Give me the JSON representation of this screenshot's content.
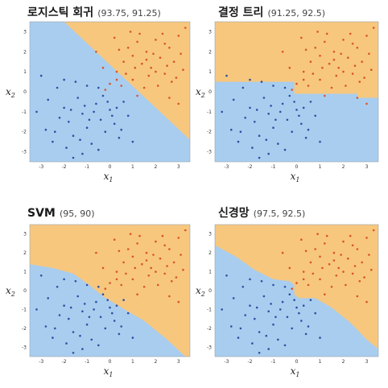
{
  "colors": {
    "orange_region": "#f7c77e",
    "blue_region": "#a8cdef",
    "orange_point": "#d9542a",
    "blue_point": "#2e4fa3"
  },
  "chart_data": [
    {
      "type": "scatter",
      "title": "로지스틱 회귀",
      "score": "(93.75, 91.25)",
      "xlabel": "x",
      "xlabel_sub": "1",
      "ylabel": "x",
      "ylabel_sub": "2",
      "x_ticks": [
        "-3",
        "-2",
        "-1",
        "0",
        "1",
        "2",
        "3"
      ],
      "y_ticks": [
        "3",
        "2",
        "1",
        "0",
        "-1",
        "-2",
        "-3"
      ],
      "xlim": [
        -3.5,
        3.5
      ],
      "ylim": [
        -3.5,
        3.5
      ],
      "boundary": "linear"
    },
    {
      "type": "scatter",
      "title": "결정 트리",
      "score": "(91.25, 92.5)",
      "xlabel": "x",
      "xlabel_sub": "1",
      "ylabel": "x",
      "ylabel_sub": "2",
      "x_ticks": [
        "-3",
        "-2",
        "-1",
        "0",
        "1",
        "2",
        "3"
      ],
      "y_ticks": [
        "3",
        "2",
        "1",
        "0",
        "-1",
        "-2",
        "-3"
      ],
      "xlim": [
        -3.5,
        3.5
      ],
      "ylim": [
        -3.5,
        3.5
      ],
      "boundary": "tree"
    },
    {
      "type": "scatter",
      "title": "SVM",
      "score": "(95, 90)",
      "xlabel": "x",
      "xlabel_sub": "1",
      "ylabel": "x",
      "ylabel_sub": "2",
      "x_ticks": [
        "-3",
        "-2",
        "-1",
        "0",
        "1",
        "2",
        "3"
      ],
      "y_ticks": [
        "3",
        "2",
        "1",
        "0",
        "-1",
        "-2",
        "-3"
      ],
      "xlim": [
        -3.5,
        3.5
      ],
      "ylim": [
        -3.5,
        3.5
      ],
      "boundary": "svm"
    },
    {
      "type": "scatter",
      "title": "신경망",
      "score": "(97.5, 92.5)",
      "xlabel": "x",
      "xlabel_sub": "1",
      "ylabel": "x",
      "ylabel_sub": "2",
      "x_ticks": [
        "-3",
        "-2",
        "-1",
        "0",
        "1",
        "2",
        "3"
      ],
      "y_ticks": [
        "3",
        "2",
        "1",
        "0",
        "-1",
        "-2",
        "-3"
      ],
      "xlim": [
        -3.5,
        3.5
      ],
      "ylim": [
        -3.5,
        3.5
      ],
      "boundary": "nn"
    }
  ],
  "points": {
    "orange": [
      [
        -0.3,
        1.2
      ],
      [
        0.3,
        1.0
      ],
      [
        0.5,
        0.3
      ],
      [
        0.8,
        2.2
      ],
      [
        1.0,
        1.8
      ],
      [
        1.2,
        2.5
      ],
      [
        1.4,
        1.4
      ],
      [
        1.6,
        2.0
      ],
      [
        1.8,
        1.2
      ],
      [
        2.0,
        2.6
      ],
      [
        2.2,
        1.7
      ],
      [
        2.4,
        0.9
      ],
      [
        2.6,
        2.2
      ],
      [
        2.8,
        1.5
      ],
      [
        3.0,
        2.8
      ],
      [
        0.2,
        2.7
      ],
      [
        0.6,
        1.5
      ],
      [
        1.0,
        0.6
      ],
      [
        1.3,
        2.9
      ],
      [
        1.7,
        0.8
      ],
      [
        2.1,
        0.3
      ],
      [
        2.5,
        1.3
      ],
      [
        2.9,
        0.7
      ],
      [
        3.1,
        1.9
      ],
      [
        0.0,
        0.4
      ],
      [
        0.4,
        2.1
      ],
      [
        0.9,
        3.0
      ],
      [
        1.5,
        0.2
      ],
      [
        1.9,
        1.9
      ],
      [
        2.3,
        2.9
      ],
      [
        2.7,
        0.5
      ],
      [
        3.2,
        1.1
      ],
      [
        0.7,
        0.9
      ],
      [
        1.1,
        1.2
      ],
      [
        1.6,
        1.6
      ],
      [
        2.0,
        1.0
      ],
      [
        2.4,
        2.4
      ],
      [
        -0.6,
        2.0
      ],
      [
        -0.2,
        0.1
      ],
      [
        1.2,
        -0.2
      ],
      [
        2.6,
        -0.3
      ],
      [
        3.0,
        -0.6
      ],
      [
        0.3,
        0.6
      ],
      [
        3.3,
        3.2
      ]
    ],
    "blue": [
      [
        -3.2,
        -1.0
      ],
      [
        -2.8,
        -1.9
      ],
      [
        -2.5,
        -2.5
      ],
      [
        -2.3,
        0.2
      ],
      [
        -2.0,
        -0.8
      ],
      [
        -1.8,
        -1.5
      ],
      [
        -1.6,
        -2.2
      ],
      [
        -1.4,
        -0.3
      ],
      [
        -1.2,
        -1.1
      ],
      [
        -1.0,
        -1.8
      ],
      [
        -0.8,
        -2.6
      ],
      [
        -0.6,
        -0.6
      ],
      [
        -0.4,
        -1.4
      ],
      [
        -0.2,
        -2.0
      ],
      [
        0.0,
        -0.9
      ],
      [
        0.2,
        -1.6
      ],
      [
        0.4,
        -2.3
      ],
      [
        0.6,
        -0.5
      ],
      [
        -2.7,
        -0.4
      ],
      [
        -2.2,
        -1.3
      ],
      [
        -1.9,
        -2.8
      ],
      [
        -1.5,
        0.5
      ],
      [
        -1.1,
        -0.7
      ],
      [
        -0.9,
        -1.4
      ],
      [
        -0.5,
        -2.9
      ],
      [
        -0.3,
        -0.2
      ],
      [
        0.1,
        -1.2
      ],
      [
        0.5,
        -1.9
      ],
      [
        -1.7,
        -0.9
      ],
      [
        -1.3,
        -2.4
      ],
      [
        -0.7,
        -1.0
      ],
      [
        -2.4,
        -2.0
      ],
      [
        -1.0,
        0.3
      ],
      [
        -0.1,
        -0.5
      ],
      [
        0.3,
        -0.8
      ],
      [
        -1.2,
        -3.1
      ],
      [
        -3.0,
        0.8
      ],
      [
        -2.0,
        0.6
      ],
      [
        -0.5,
        0.2
      ],
      [
        -1.6,
        -3.3
      ],
      [
        0.8,
        -1.2
      ],
      [
        1.0,
        -2.5
      ]
    ]
  }
}
